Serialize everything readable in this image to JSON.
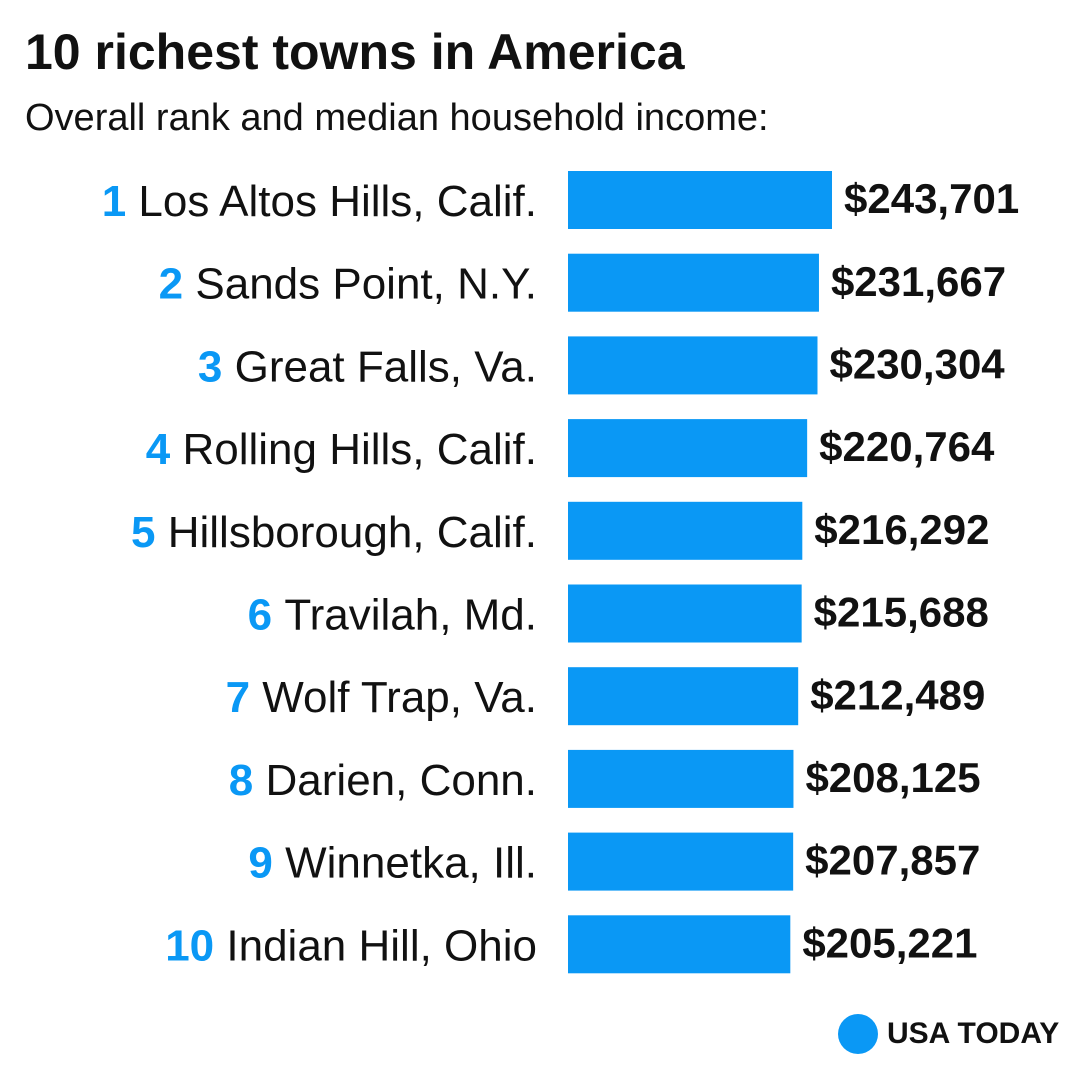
{
  "chart_data": {
    "type": "bar",
    "title": "10 richest towns in America",
    "subtitle": "Overall rank and median household income:",
    "ranks": [
      1,
      2,
      3,
      4,
      5,
      6,
      7,
      8,
      9,
      10
    ],
    "categories": [
      "Los Altos Hills, Calif.",
      "Sands Point, N.Y.",
      "Great Falls, Va.",
      "Rolling Hills, Calif.",
      "Hillsborough, Calif.",
      "Travilah, Md.",
      "Wolf Trap, Va.",
      "Darien, Conn.",
      "Winnetka, Ill.",
      "Indian Hill, Ohio"
    ],
    "values": [
      243701,
      231667,
      230304,
      220764,
      216292,
      215688,
      212489,
      208125,
      207857,
      205221
    ],
    "value_labels": [
      "$243,701",
      "$231,667",
      "$230,304",
      "$220,764",
      "$216,292",
      "$215,688",
      "$212,489",
      "$208,125",
      "$207,857",
      "$205,221"
    ],
    "color": "#0a98f5",
    "source": "USA TODAY"
  }
}
